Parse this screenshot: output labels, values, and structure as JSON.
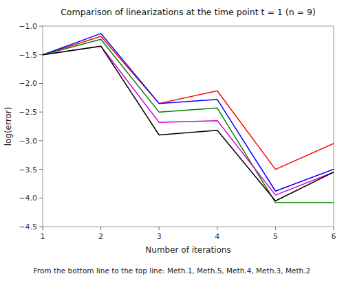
{
  "chart_data": {
    "type": "line",
    "title": "Comparison of linearizations at the time point t = 1 (n = 9)",
    "x_label": "Number of iterations",
    "y_label": "log(error)",
    "annotations": [
      "From the bottom line to the top line: Meth.1, Meth.5, Meth.4, Meth.3, Meth.2"
    ],
    "x": [
      1,
      2,
      3,
      4,
      5,
      6
    ],
    "xlim": [
      1,
      6
    ],
    "ylim": [
      -4.5,
      -1
    ],
    "xticks": [
      1,
      2,
      3,
      4,
      5,
      6
    ],
    "yticks": [
      {
        "value": -4.5,
        "label": "−4.5"
      },
      {
        "value": -4.0,
        "label": "−4.0"
      },
      {
        "value": -3.5,
        "label": "−3.5"
      },
      {
        "value": -3.0,
        "label": "−3.0"
      },
      {
        "value": -2.5,
        "label": "−2.5"
      },
      {
        "value": -2.0,
        "label": "−2.0"
      },
      {
        "value": -1.5,
        "label": "−1.5"
      },
      {
        "value": -1.0,
        "label": "−1.0"
      }
    ],
    "grid": false,
    "series": [
      {
        "color": "red",
        "values": [
          -1.5,
          -1.18,
          -2.35,
          -2.13,
          -3.5,
          -3.05
        ]
      },
      {
        "color": "blue",
        "values": [
          -1.5,
          -1.13,
          -2.35,
          -2.28,
          -3.88,
          -3.5
        ]
      },
      {
        "color": "green",
        "values": [
          -1.5,
          -1.23,
          -2.5,
          -2.43,
          -4.08,
          -4.08
        ]
      },
      {
        "color": "#cc00cc",
        "values": [
          -1.5,
          -1.35,
          -2.68,
          -2.65,
          -3.95,
          -3.55
        ]
      },
      {
        "color": "black",
        "values": [
          -1.5,
          -1.35,
          -2.9,
          -2.82,
          -4.05,
          -3.55
        ]
      }
    ]
  }
}
